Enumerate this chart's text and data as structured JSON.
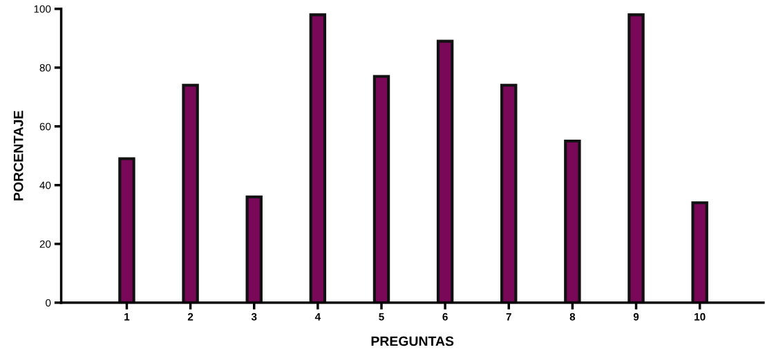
{
  "chart_data": {
    "type": "bar",
    "xlabel": "PREGUNTAS",
    "ylabel": "PORCENTAJE",
    "categories": [
      "1",
      "2",
      "3",
      "4",
      "5",
      "6",
      "7",
      "8",
      "9",
      "10"
    ],
    "values": [
      49,
      74,
      36,
      98,
      77,
      89,
      74,
      55,
      98,
      34
    ],
    "color": "#7a0858",
    "ylim": [
      0,
      100
    ],
    "yticks": [
      0,
      20,
      40,
      60,
      80,
      100
    ],
    "grid": false
  }
}
